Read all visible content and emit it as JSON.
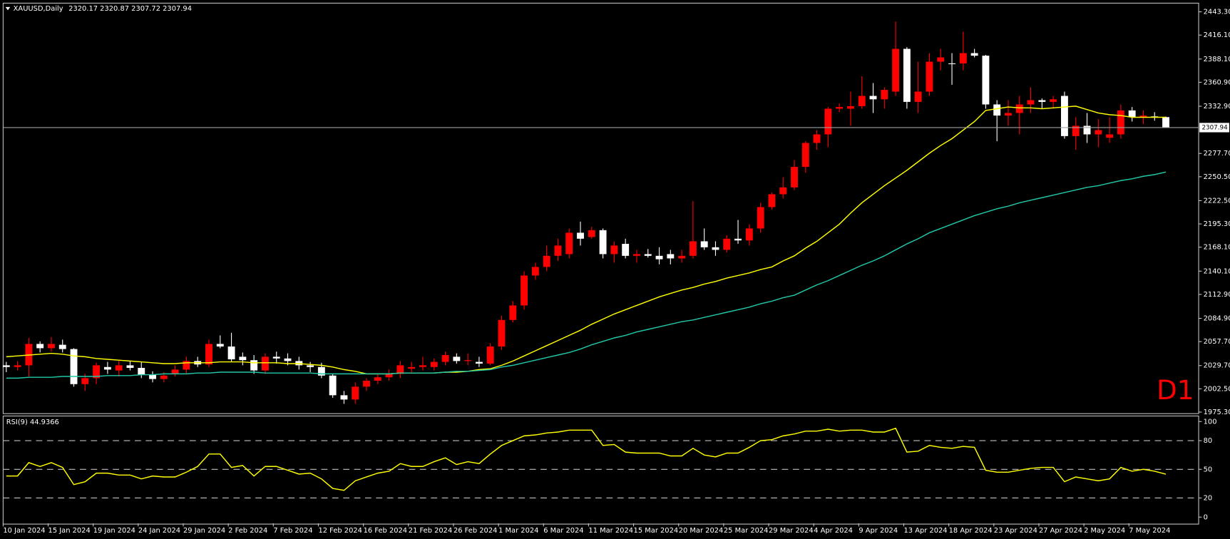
{
  "chart_data": [
    {
      "type": "candlestick",
      "symbol": "XAUUSD,Daily",
      "timeframe_label": "D1",
      "categories": [
        "10 Jan 2024",
        null,
        null,
        null,
        "15 Jan 2024",
        null,
        null,
        null,
        "19 Jan 2024",
        null,
        null,
        null,
        "24 Jan 2024",
        null,
        null,
        null,
        "29 Jan 2024",
        null,
        null,
        null,
        "2 Feb 2024",
        null,
        null,
        null,
        "7 Feb 2024",
        null,
        null,
        null,
        "12 Feb 2024",
        null,
        null,
        null,
        "16 Feb 2024",
        null,
        null,
        null,
        "21 Feb 2024",
        null,
        null,
        null,
        "26 Feb 2024",
        null,
        null,
        null,
        "1 Mar 2024",
        null,
        null,
        null,
        "6 Mar 2024",
        null,
        null,
        null,
        "11 Mar 2024",
        null,
        null,
        null,
        "15 Mar 2024",
        null,
        null,
        null,
        "20 Mar 2024",
        null,
        null,
        null,
        "25 Mar 2024",
        null,
        null,
        null,
        "29 Mar 2024",
        null,
        null,
        null,
        "4 Apr 2024",
        null,
        null,
        null,
        "9 Apr 2024",
        null,
        null,
        null,
        "13 Apr 2024",
        null,
        null,
        null,
        "18 Apr 2024",
        null,
        null,
        null,
        "23 Apr 2024",
        null,
        null,
        null,
        "27 Apr 2024",
        null,
        null,
        null,
        "2 May 2024",
        null,
        null,
        null,
        "7 May 2024",
        null,
        null,
        null
      ],
      "ohlc": [
        [
          2030,
          2034,
          2022,
          2028
        ],
        [
          2028,
          2035,
          2024,
          2030
        ],
        [
          2030,
          2062,
          2017,
          2055
        ],
        [
          2055,
          2058,
          2045,
          2050
        ],
        [
          2050,
          2063,
          2046,
          2055
        ],
        [
          2054,
          2060,
          2045,
          2049
        ],
        [
          2049,
          2050,
          2005,
          2008
        ],
        [
          2008,
          2020,
          2000,
          2015
        ],
        [
          2015,
          2033,
          2008,
          2030
        ],
        [
          2028,
          2034,
          2020,
          2025
        ],
        [
          2024,
          2036,
          2017,
          2030
        ],
        [
          2030,
          2035,
          2024,
          2027
        ],
        [
          2027,
          2034,
          2015,
          2019
        ],
        [
          2019,
          2023,
          2010,
          2014
        ],
        [
          2014,
          2022,
          2010,
          2018
        ],
        [
          2020,
          2030,
          2017,
          2025
        ],
        [
          2025,
          2040,
          2021,
          2035
        ],
        [
          2035,
          2040,
          2028,
          2031
        ],
        [
          2031,
          2060,
          2028,
          2055
        ],
        [
          2055,
          2065,
          2050,
          2052
        ],
        [
          2052,
          2068,
          2034,
          2037
        ],
        [
          2040,
          2045,
          2030,
          2036
        ],
        [
          2036,
          2042,
          2020,
          2024
        ],
        [
          2024,
          2044,
          2020,
          2040
        ],
        [
          2040,
          2046,
          2032,
          2038
        ],
        [
          2038,
          2044,
          2030,
          2035
        ],
        [
          2035,
          2040,
          2025,
          2030
        ],
        [
          2030,
          2034,
          2022,
          2028
        ],
        [
          2028,
          2033,
          2015,
          2018
        ],
        [
          2018,
          2020,
          1992,
          1995
        ],
        [
          1995,
          2000,
          1985,
          1990
        ],
        [
          1990,
          2010,
          1985,
          2005
        ],
        [
          2005,
          2015,
          2000,
          2012
        ],
        [
          2012,
          2020,
          2008,
          2016
        ],
        [
          2016,
          2025,
          2012,
          2020
        ],
        [
          2020,
          2035,
          2015,
          2030
        ],
        [
          2026,
          2034,
          2022,
          2028
        ],
        [
          2028,
          2040,
          2024,
          2030
        ],
        [
          2028,
          2038,
          2024,
          2034
        ],
        [
          2034,
          2046,
          2030,
          2042
        ],
        [
          2040,
          2044,
          2032,
          2035
        ],
        [
          2035,
          2044,
          2030,
          2036
        ],
        [
          2034,
          2040,
          2028,
          2032
        ],
        [
          2032,
          2056,
          2030,
          2052
        ],
        [
          2052,
          2088,
          2048,
          2083
        ],
        [
          2083,
          2105,
          2080,
          2100
        ],
        [
          2100,
          2140,
          2095,
          2135
        ],
        [
          2135,
          2150,
          2130,
          2145
        ],
        [
          2145,
          2170,
          2140,
          2158
        ],
        [
          2158,
          2178,
          2152,
          2170
        ],
        [
          2160,
          2190,
          2155,
          2185
        ],
        [
          2185,
          2198,
          2170,
          2178
        ],
        [
          2180,
          2192,
          2178,
          2188
        ],
        [
          2188,
          2190,
          2155,
          2160
        ],
        [
          2160,
          2175,
          2150,
          2170
        ],
        [
          2172,
          2178,
          2155,
          2158
        ],
        [
          2158,
          2165,
          2150,
          2160
        ],
        [
          2160,
          2166,
          2156,
          2158
        ],
        [
          2158,
          2168,
          2148,
          2154
        ],
        [
          2160,
          2165,
          2148,
          2155
        ],
        [
          2155,
          2165,
          2150,
          2158
        ],
        [
          2158,
          2222,
          2155,
          2175
        ],
        [
          2175,
          2190,
          2165,
          2168
        ],
        [
          2168,
          2175,
          2158,
          2165
        ],
        [
          2165,
          2182,
          2162,
          2178
        ],
        [
          2178,
          2200,
          2172,
          2176
        ],
        [
          2176,
          2195,
          2170,
          2190
        ],
        [
          2190,
          2220,
          2185,
          2215
        ],
        [
          2215,
          2232,
          2212,
          2230
        ],
        [
          2230,
          2250,
          2225,
          2238
        ],
        [
          2238,
          2270,
          2235,
          2262
        ],
        [
          2262,
          2292,
          2255,
          2290
        ],
        [
          2290,
          2305,
          2282,
          2300
        ],
        [
          2300,
          2332,
          2285,
          2330
        ],
        [
          2330,
          2336,
          2326,
          2332
        ],
        [
          2330,
          2350,
          2310,
          2333
        ],
        [
          2333,
          2368,
          2330,
          2345
        ],
        [
          2345,
          2360,
          2325,
          2341
        ],
        [
          2341,
          2355,
          2330,
          2352
        ],
        [
          2350,
          2432,
          2345,
          2400
        ],
        [
          2400,
          2402,
          2330,
          2338
        ],
        [
          2338,
          2385,
          2325,
          2350
        ],
        [
          2350,
          2395,
          2345,
          2385
        ],
        [
          2385,
          2400,
          2375,
          2390
        ],
        [
          2383,
          2395,
          2358,
          2383
        ],
        [
          2383,
          2420,
          2375,
          2395
        ],
        [
          2395,
          2400,
          2390,
          2392
        ],
        [
          2392,
          2393,
          2330,
          2335
        ],
        [
          2335,
          2340,
          2292,
          2322
        ],
        [
          2322,
          2340,
          2310,
          2325
        ],
        [
          2325,
          2345,
          2300,
          2335
        ],
        [
          2335,
          2355,
          2325,
          2340
        ],
        [
          2340,
          2342,
          2330,
          2338
        ],
        [
          2338,
          2345,
          2330,
          2341
        ],
        [
          2345,
          2350,
          2295,
          2298
        ],
        [
          2298,
          2320,
          2282,
          2310
        ],
        [
          2310,
          2325,
          2290,
          2300
        ],
        [
          2300,
          2318,
          2285,
          2305
        ],
        [
          2296,
          2320,
          2290,
          2300
        ],
        [
          2300,
          2335,
          2295,
          2328
        ],
        [
          2328,
          2332,
          2315,
          2320
        ],
        [
          2320,
          2328,
          2312,
          2322
        ],
        [
          2321,
          2326,
          2316,
          2320
        ],
        [
          2320.17,
          2320.87,
          2307.72,
          2307.94
        ]
      ],
      "up_color": "#ff0000",
      "down_color": "#ffffff",
      "lines": [
        {
          "color": "#ffff00",
          "values": [
            2040,
            2041,
            2042,
            2043,
            2044,
            2043,
            2041,
            2040,
            2038,
            2037,
            2036,
            2035,
            2034,
            2033,
            2032,
            2032,
            2033,
            2033,
            2033,
            2034,
            2034,
            2034,
            2033,
            2033,
            2033,
            2032,
            2032,
            2031,
            2030,
            2028,
            2025,
            2023,
            2020,
            2020,
            2020,
            2021,
            2021,
            2021,
            2021,
            2022,
            2022,
            2023,
            2025,
            2026,
            2030,
            2035,
            2041,
            2047,
            2053,
            2059,
            2065,
            2071,
            2078,
            2084,
            2090,
            2095,
            2100,
            2105,
            2110,
            2114,
            2118,
            2121,
            2125,
            2128,
            2132,
            2135,
            2138,
            2142,
            2145,
            2152,
            2158,
            2167,
            2175,
            2185,
            2195,
            2208,
            2220,
            2230,
            2240,
            2249,
            2258,
            2268,
            2278,
            2287,
            2295,
            2305,
            2315,
            2328,
            2330,
            2332,
            2331,
            2331,
            2330,
            2331,
            2332,
            2333,
            2329,
            2325,
            2323,
            2322,
            2320,
            2320,
            2320,
            2320
          ]
        },
        {
          "color": "#20c8a8",
          "values": [
            2015,
            2015,
            2016,
            2016,
            2016,
            2017,
            2017,
            2017,
            2017,
            2018,
            2018,
            2018,
            2019,
            2019,
            2020,
            2020,
            2020,
            2021,
            2021,
            2022,
            2022,
            2022,
            2022,
            2021,
            2021,
            2021,
            2021,
            2021,
            2020,
            2020,
            2020,
            2020,
            2020,
            2020,
            2020,
            2021,
            2021,
            2021,
            2021,
            2022,
            2023,
            2023,
            2024,
            2025,
            2028,
            2030,
            2033,
            2036,
            2039,
            2042,
            2045,
            2049,
            2054,
            2058,
            2062,
            2065,
            2069,
            2072,
            2075,
            2078,
            2081,
            2083,
            2086,
            2089,
            2092,
            2095,
            2098,
            2102,
            2105,
            2109,
            2112,
            2118,
            2124,
            2129,
            2135,
            2141,
            2147,
            2152,
            2158,
            2165,
            2172,
            2178,
            2185,
            2190,
            2195,
            2200,
            2205,
            2209,
            2213,
            2216,
            2220,
            2223,
            2226,
            2229,
            2232,
            2235,
            2238,
            2240,
            2243,
            2246,
            2248,
            2251,
            2253,
            2256
          ]
        }
      ],
      "ylim": [
        1973.5,
        2452.5
      ],
      "yticks": [
        {
          "value": 2443.3,
          "label": "2443.30"
        },
        {
          "value": 2416.1,
          "label": "2416.10"
        },
        {
          "value": 2388.1,
          "label": "2388.10"
        },
        {
          "value": 2360.9,
          "label": "2360.90"
        },
        {
          "value": 2332.9,
          "label": "2332.90"
        },
        {
          "value": 2277.7,
          "label": "2277.70"
        },
        {
          "value": 2250.5,
          "label": "2250.50"
        },
        {
          "value": 2222.5,
          "label": "2222.50"
        },
        {
          "value": 2195.3,
          "label": "2195.30"
        },
        {
          "value": 2168.1,
          "label": "2168.10"
        },
        {
          "value": 2140.1,
          "label": "2140.10"
        },
        {
          "value": 2112.9,
          "label": "2112.90"
        },
        {
          "value": 2084.9,
          "label": "2084.90"
        },
        {
          "value": 2057.7,
          "label": "2057.70"
        },
        {
          "value": 2029.7,
          "label": "2029.70"
        },
        {
          "value": 2002.5,
          "label": "2002.50"
        },
        {
          "value": 1975.3,
          "label": "1975.30"
        }
      ]
    },
    {
      "type": "line",
      "title": "RSI(9)",
      "color": "#ffff00",
      "values": [
        43,
        43,
        57,
        53,
        57,
        52,
        34,
        37,
        46,
        46,
        44,
        44,
        40,
        43,
        42,
        42,
        47,
        53,
        66,
        66,
        52,
        54,
        43,
        53,
        53,
        49,
        45,
        46,
        40,
        30,
        28,
        38,
        42,
        46,
        48,
        56,
        53,
        53,
        58,
        62,
        55,
        58,
        56,
        66,
        75,
        80,
        85,
        86,
        88,
        89,
        91,
        91,
        91,
        75,
        76,
        68,
        67,
        67,
        67,
        64,
        64,
        72,
        65,
        63,
        67,
        67,
        73,
        80,
        81,
        85,
        87,
        90,
        90,
        92,
        90,
        91,
        91,
        89,
        89,
        93,
        68,
        69,
        75,
        73,
        72,
        74,
        73,
        49,
        47,
        47,
        49,
        51,
        52,
        52,
        37,
        42,
        40,
        38,
        40,
        52,
        48,
        50,
        48,
        44.9366
      ],
      "ylim": [
        -6.5,
        105
      ],
      "yticks": [
        100,
        80,
        50,
        20,
        0
      ],
      "levels": [
        80,
        50,
        20
      ]
    }
  ]
}
